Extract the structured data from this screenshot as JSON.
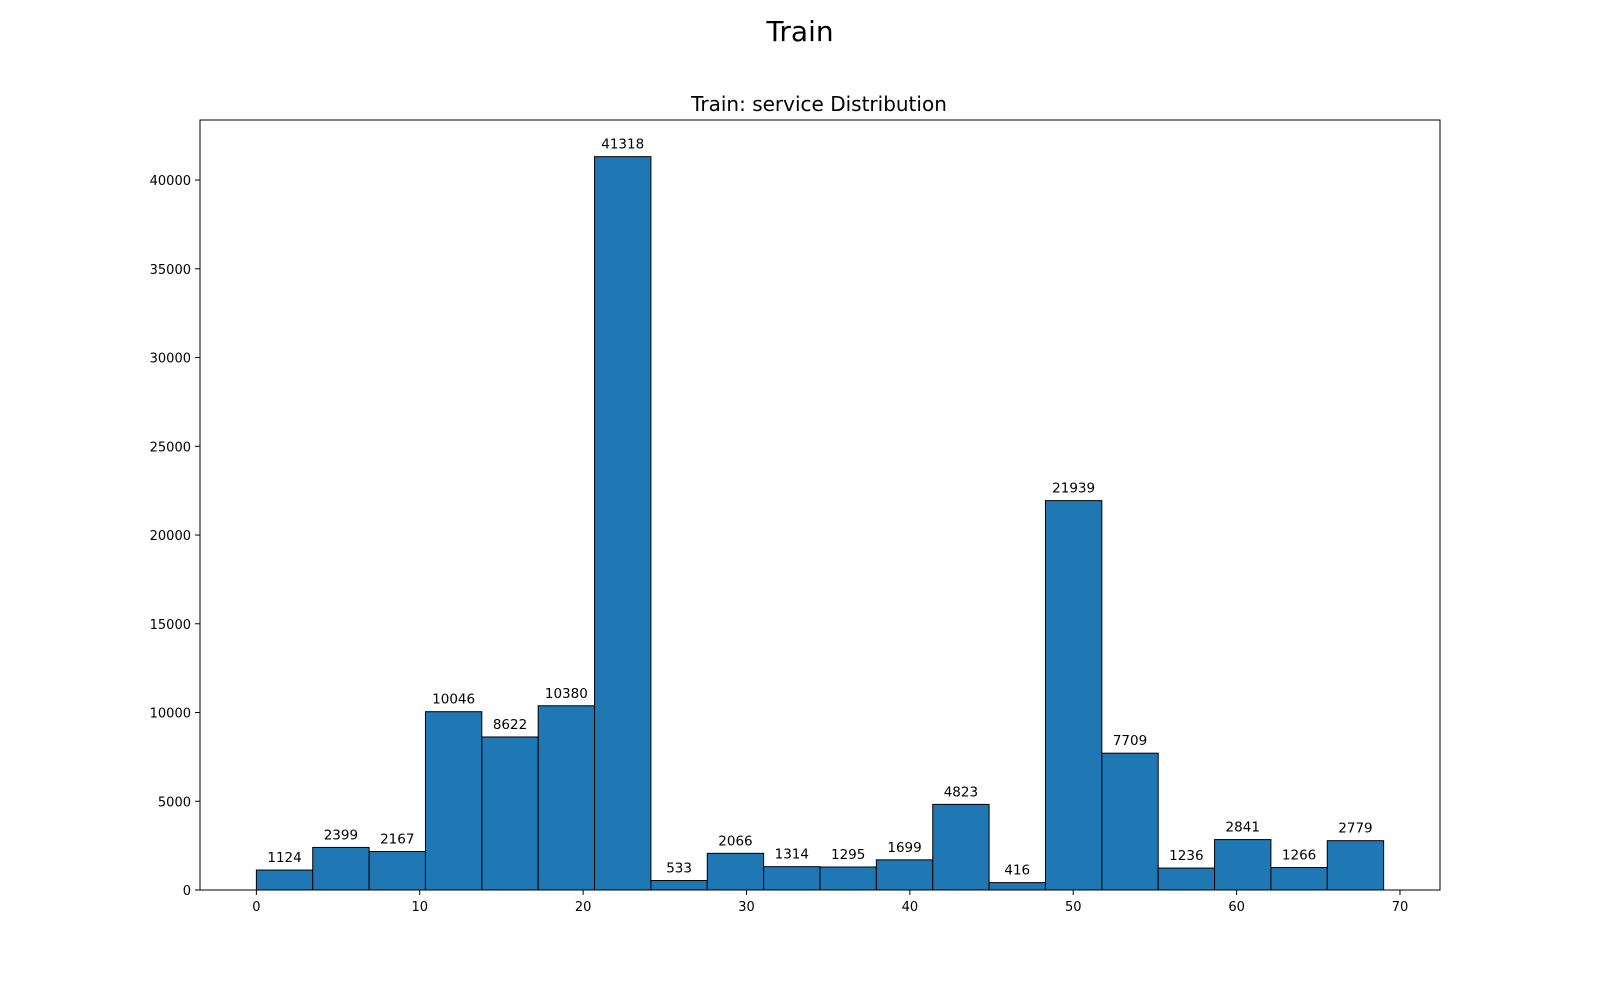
{
  "chart_data": {
    "type": "bar",
    "suptitle": "Train",
    "title": "Train: service Distribution",
    "xlabel": "",
    "ylabel": "",
    "xlim": [
      -3.45,
      72.45
    ],
    "ylim": [
      0,
      43384
    ],
    "xticks": [
      0,
      10,
      20,
      30,
      40,
      50,
      60,
      70
    ],
    "yticks": [
      0,
      5000,
      10000,
      15000,
      20000,
      25000,
      30000,
      35000,
      40000
    ],
    "grid": false,
    "legend": "none",
    "bar_color": "#1f77b4",
    "edge_color": "#000000",
    "bin_edges": [
      0,
      3.45,
      6.9,
      10.35,
      13.8,
      17.25,
      20.7,
      24.15,
      27.6,
      31.05,
      34.5,
      37.95,
      41.4,
      44.85,
      48.3,
      51.75,
      55.2,
      58.65,
      62.1,
      65.55,
      69
    ],
    "values": [
      1124,
      2399,
      2167,
      10046,
      8622,
      10380,
      41318,
      533,
      2066,
      1314,
      1295,
      1699,
      4823,
      416,
      21939,
      7709,
      1236,
      2841,
      1266,
      2779
    ],
    "data_labels": [
      "1124",
      "2399",
      "2167",
      "10046",
      "8622",
      "10380",
      "41318",
      "533",
      "2066",
      "1314",
      "1295",
      "1699",
      "4823",
      "416",
      "21939",
      "7709",
      "1236",
      "2841",
      "1266",
      "2779"
    ]
  }
}
